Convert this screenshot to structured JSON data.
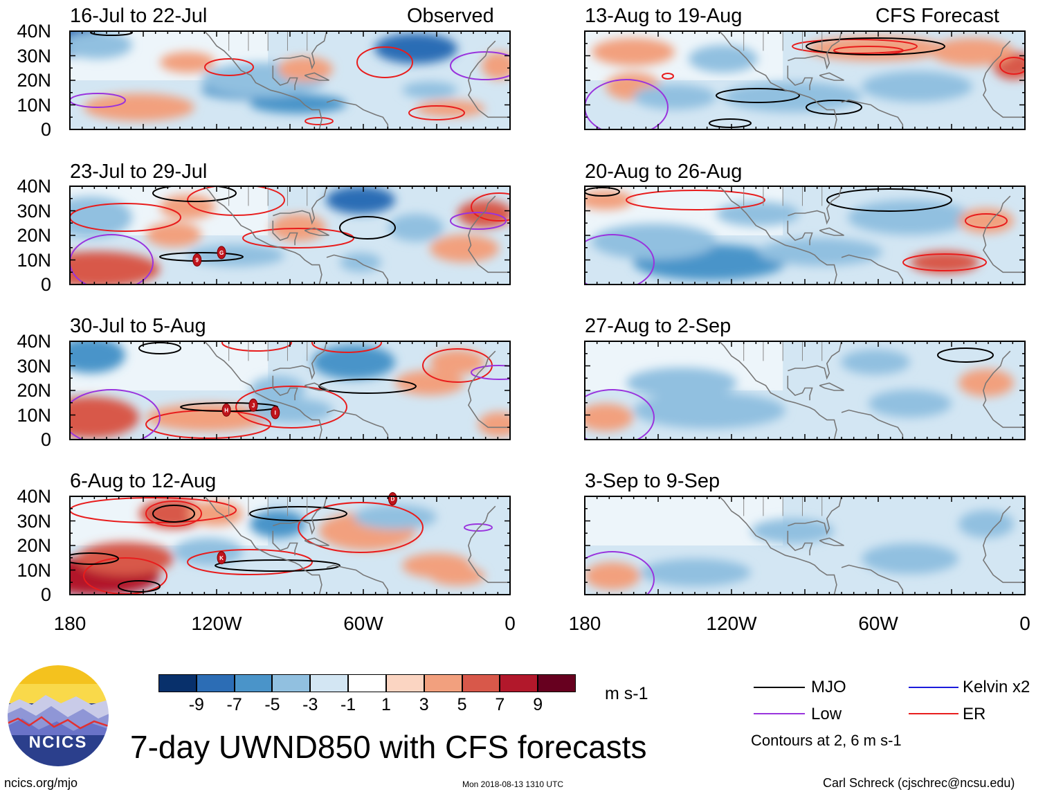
{
  "header": {
    "observed_label": "Observed",
    "forecast_label": "CFS Forecast"
  },
  "chart_data": {
    "type": "heatmap",
    "title": "7-day UWND850 with CFS forecasts",
    "variable": "850-hPa zonal wind anomaly",
    "units": "m s-1",
    "x_axis": {
      "range": [
        180,
        0
      ],
      "ticks": [
        "180",
        "120W",
        "60W",
        "0"
      ]
    },
    "y_axis": {
      "range": [
        0,
        40
      ],
      "ticks": [
        "0",
        "10N",
        "20N",
        "30N",
        "40N"
      ]
    },
    "colorbar": {
      "levels": [
        "-9",
        "-7",
        "-5",
        "-3",
        "-1",
        "1",
        "3",
        "5",
        "7",
        "9"
      ],
      "colors": [
        "#08306b",
        "#2c6db5",
        "#4a94c9",
        "#91c0e0",
        "#d3e6f3",
        "#ffffff",
        "#fbd5c2",
        "#f2a07e",
        "#d8584a",
        "#b2182b",
        "#67001f"
      ]
    },
    "observed_panels": [
      {
        "title": "16-Jul to 22-Jul",
        "storms": []
      },
      {
        "title": "23-Jul to 29-Jul",
        "storms": [
          "9",
          "G"
        ]
      },
      {
        "title": "30-Jul to 5-Aug",
        "storms": [
          "H",
          "J",
          "I"
        ]
      },
      {
        "title": "6-Aug to 12-Aug",
        "storms": [
          "K",
          "D"
        ]
      }
    ],
    "forecast_panels": [
      {
        "title": "13-Aug to 19-Aug"
      },
      {
        "title": "20-Aug to 26-Aug"
      },
      {
        "title": "27-Aug to 2-Sep"
      },
      {
        "title": "3-Sep to 9-Sep"
      }
    ],
    "contour_legend": [
      {
        "label": "MJO",
        "color": "#000000"
      },
      {
        "label": "Kelvin x2",
        "color": "#1a1adc"
      },
      {
        "label": "Low",
        "color": "#9933dd"
      },
      {
        "label": "ER",
        "color": "#e81c1c"
      }
    ],
    "contour_note": "Contours at 2, 6 m s-1"
  },
  "footer": {
    "logo_text": "NCICS",
    "url": "ncics.org/mjo",
    "timestamp": "Mon 2018-08-13 1310 UTC",
    "credit": "Carl Schreck (cjschrec@ncsu.edu)"
  }
}
